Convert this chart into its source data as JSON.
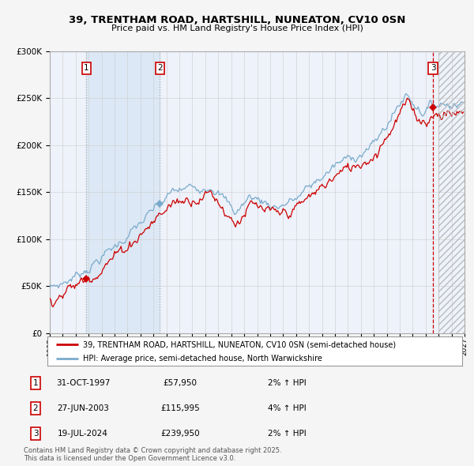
{
  "title": "39, TRENTHAM ROAD, HARTSHILL, NUNEATON, CV10 0SN",
  "subtitle": "Price paid vs. HM Land Registry's House Price Index (HPI)",
  "legend_line1": "39, TRENTHAM ROAD, HARTSHILL, NUNEATON, CV10 0SN (semi-detached house)",
  "legend_line2": "HPI: Average price, semi-detached house, North Warwickshire",
  "sale1_date": "31-OCT-1997",
  "sale1_price": 57950,
  "sale1_pct": "2% ↑ HPI",
  "sale2_date": "27-JUN-2003",
  "sale2_price": 115995,
  "sale2_pct": "4% ↑ HPI",
  "sale3_date": "19-JUL-2024",
  "sale3_price": 239950,
  "sale3_pct": "2% ↑ HPI",
  "footnote": "Contains HM Land Registry data © Crown copyright and database right 2025.\nThis data is licensed under the Open Government Licence v3.0.",
  "red_color": "#cc0000",
  "blue_color": "#7aabcc",
  "bg_color": "#eef2fa",
  "shaded_color": "#dce8f5",
  "grid_color": "#cccccc",
  "dashed_color_grey": "#aaaaaa",
  "dashed_color_red": "#cc0000",
  "ylim": [
    0,
    300000
  ],
  "yticks": [
    0,
    50000,
    100000,
    150000,
    200000,
    250000,
    300000
  ],
  "x_start_year": 1995,
  "x_end_year": 2027
}
